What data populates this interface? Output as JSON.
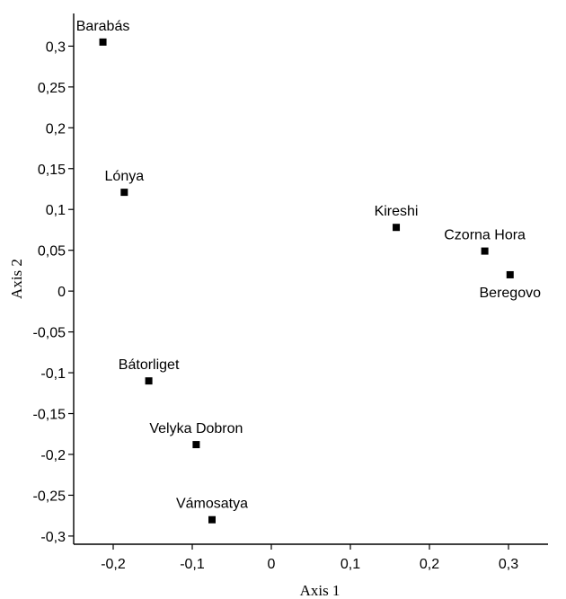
{
  "chart_data": {
    "type": "scatter",
    "title": "",
    "xlabel": "Axis 1",
    "ylabel": "Axis 2",
    "xlim": [
      -0.25,
      0.35
    ],
    "ylim": [
      -0.31,
      0.34
    ],
    "grid": false,
    "legend": "none",
    "marker": "square",
    "color": "#000000",
    "x_ticks": [
      -0.2,
      -0.1,
      0,
      0.1,
      0.2,
      0.3
    ],
    "x_tick_labels": [
      "-0,2",
      "-0,1",
      "0",
      "0,1",
      "0,2",
      "0,3"
    ],
    "y_ticks": [
      0.3,
      0.25,
      0.2,
      0.15,
      0.1,
      0.05,
      0,
      -0.05,
      -0.1,
      -0.15,
      -0.2,
      -0.25,
      -0.3
    ],
    "y_tick_labels": [
      "0,3",
      "0,25",
      "0,2",
      "0,15",
      "0,1",
      "0,05",
      "0",
      "-0,05",
      "-0,1",
      "-0,15",
      "-0,2",
      "-0,25",
      "-0,3"
    ],
    "points": [
      {
        "label": "Barabás",
        "x": -0.213,
        "y": 0.305,
        "label_pos": "above"
      },
      {
        "label": "Lónya",
        "x": -0.186,
        "y": 0.121,
        "label_pos": "above"
      },
      {
        "label": "Kireshi",
        "x": 0.158,
        "y": 0.078,
        "label_pos": "above"
      },
      {
        "label": "Czorna Hora",
        "x": 0.27,
        "y": 0.049,
        "label_pos": "above"
      },
      {
        "label": "Beregovo",
        "x": 0.302,
        "y": 0.02,
        "label_pos": "below"
      },
      {
        "label": "Bátorliget",
        "x": -0.155,
        "y": -0.11,
        "label_pos": "above"
      },
      {
        "label": "Velyka Dobron",
        "x": -0.095,
        "y": -0.188,
        "label_pos": "above"
      },
      {
        "label": "Vámosatya",
        "x": -0.075,
        "y": -0.28,
        "label_pos": "above"
      }
    ]
  }
}
